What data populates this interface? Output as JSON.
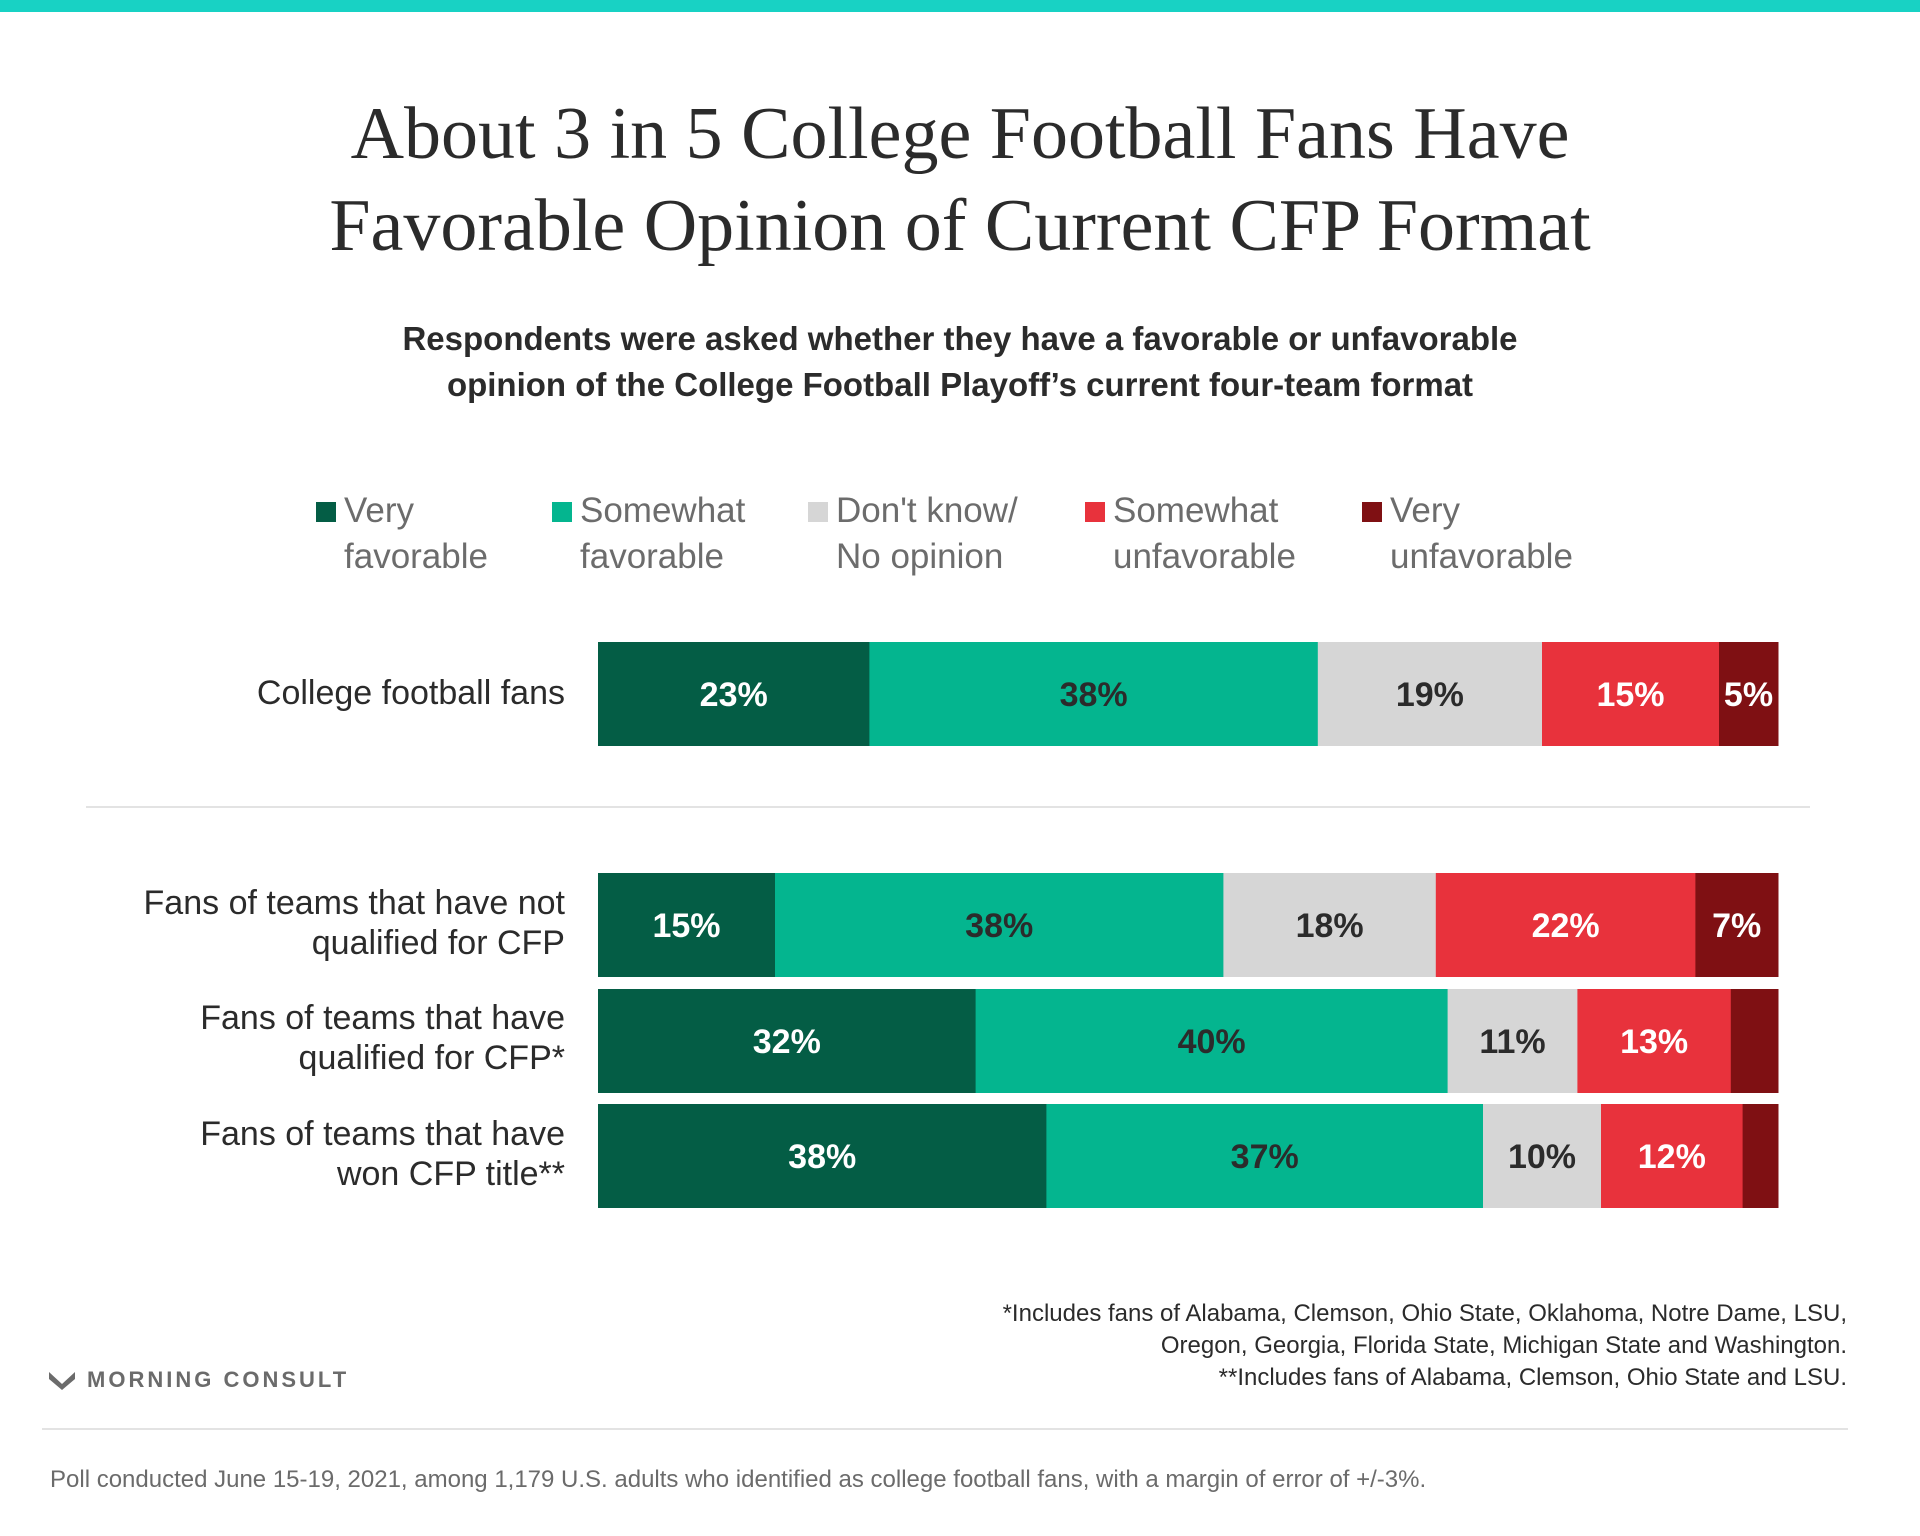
{
  "title_lines": [
    "About 3 in 5 College Football Fans Have",
    "Favorable Opinion of Current CFP Format"
  ],
  "subtitle_lines": [
    "Respondents were asked whether they have a favorable or unfavorable",
    "opinion of the College Football Playoff’s current four-team format"
  ],
  "legend": [
    {
      "line1": "Very",
      "line2": "favorable",
      "color": "#045d45"
    },
    {
      "line1": "Somewhat",
      "line2": "favorable",
      "color": "#04b58f"
    },
    {
      "line1": "Don't know/",
      "line2": "No opinion",
      "color": "#d6d6d6"
    },
    {
      "line1": "Somewhat",
      "line2": "unfavorable",
      "color": "#e8323c"
    },
    {
      "line1": "Very",
      "line2": "unfavorable",
      "color": "#7f1013"
    }
  ],
  "chart_data": {
    "type": "bar",
    "orientation": "horizontal",
    "stacked": true,
    "normalized": true,
    "series": [
      {
        "name": "Very favorable",
        "color": "#045d45",
        "label_color": "#ffffff",
        "values": [
          23,
          15,
          32,
          38
        ]
      },
      {
        "name": "Somewhat favorable",
        "color": "#04b58f",
        "label_color": "#2b2b2b",
        "values": [
          38,
          38,
          40,
          37
        ]
      },
      {
        "name": "Don't know/No opinion",
        "color": "#d6d6d6",
        "label_color": "#2b2b2b",
        "values": [
          19,
          18,
          11,
          10
        ]
      },
      {
        "name": "Somewhat unfavorable",
        "color": "#e8323c",
        "label_color": "#ffffff",
        "values": [
          15,
          22,
          13,
          12
        ]
      },
      {
        "name": "Very unfavorable",
        "color": "#7f1013",
        "label_color": "#ffffff",
        "values": [
          5,
          7,
          4,
          3
        ]
      }
    ],
    "data_labels": [
      [
        "23%",
        "38%",
        "19%",
        "15%",
        "5%"
      ],
      [
        "15%",
        "38%",
        "18%",
        "22%",
        "7%"
      ],
      [
        "32%",
        "40%",
        "11%",
        "13%",
        ""
      ],
      [
        "38%",
        "37%",
        "10%",
        "12%",
        ""
      ]
    ],
    "rows": [
      {
        "label_lines": [
          "College football fans"
        ]
      },
      {
        "label_lines": [
          "Fans of teams that have not",
          "qualified for CFP"
        ]
      },
      {
        "label_lines": [
          "Fans of teams that have",
          "qualified for CFP*"
        ]
      },
      {
        "label_lines": [
          "Fans of teams that have",
          "won CFP title**"
        ]
      }
    ]
  },
  "footnotes": [
    "*Includes fans of Alabama, Clemson, Ohio State, Oklahoma, Notre Dame, LSU,",
    "Oregon, Georgia, Florida State, Michigan State and Washington.",
    "**Includes fans of Alabama, Clemson, Ohio State and LSU."
  ],
  "brand": "MORNING CONSULT",
  "source_note": "Poll conducted June 15-19, 2021, among 1,179 U.S. adults who identified as college football fans, with a margin of error of +/-3%."
}
